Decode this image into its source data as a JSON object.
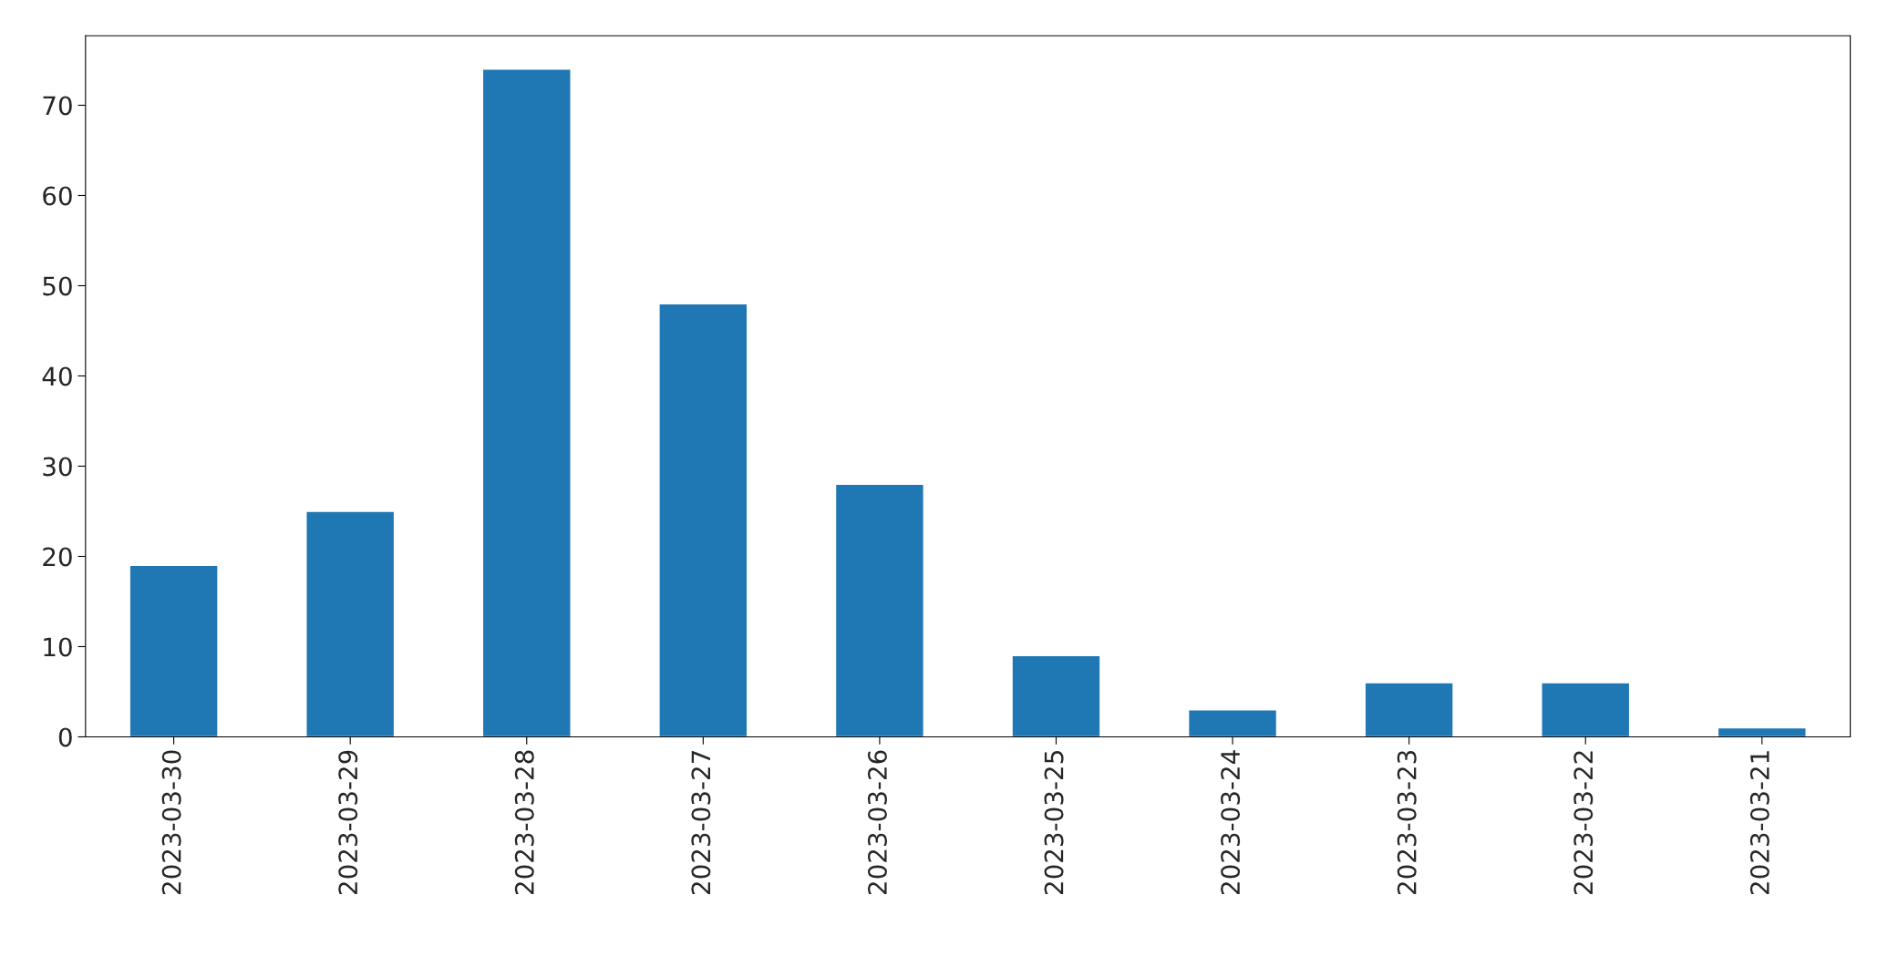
{
  "chart_data": {
    "type": "bar",
    "categories": [
      "2023-03-30",
      "2023-03-29",
      "2023-03-28",
      "2023-03-27",
      "2023-03-26",
      "2023-03-25",
      "2023-03-24",
      "2023-03-23",
      "2023-03-22",
      "2023-03-21"
    ],
    "values": [
      19,
      25,
      74,
      48,
      28,
      9,
      3,
      6,
      6,
      1
    ],
    "color": "#1f77b4",
    "ylim": [
      0,
      77.7
    ],
    "yticks": [
      0,
      10,
      20,
      30,
      40,
      50,
      60,
      70
    ],
    "grid": false,
    "legend": false
  }
}
